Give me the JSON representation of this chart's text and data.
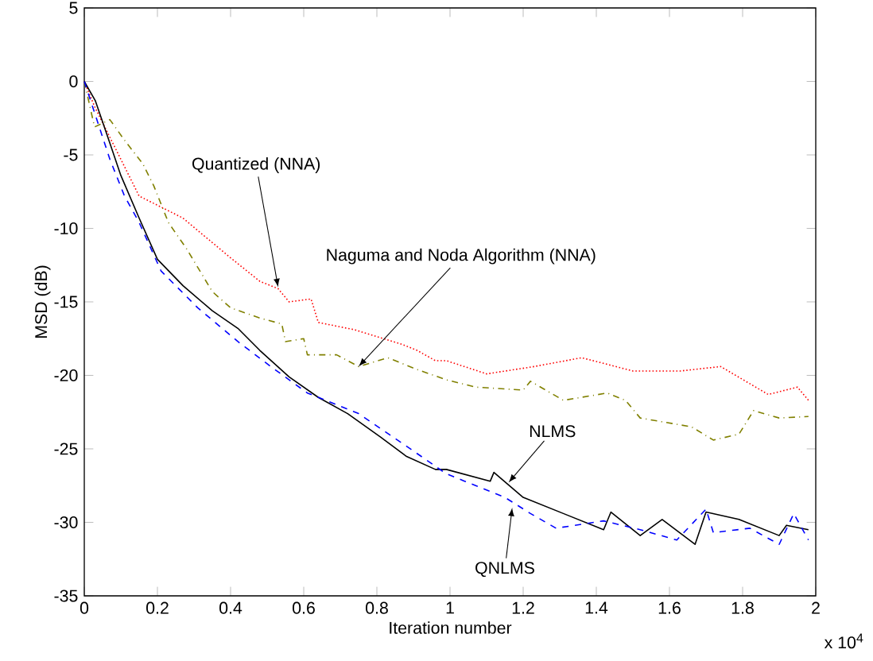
{
  "chart_data": {
    "type": "line",
    "xlabel": "Iteration number",
    "ylabel": "MSD (dB)",
    "xlim": [
      0,
      2
    ],
    "ylim": [
      -35,
      5
    ],
    "xticks": [
      0,
      0.2,
      0.4,
      0.6,
      0.8,
      1,
      1.2,
      1.4,
      1.6,
      1.8,
      2
    ],
    "yticks": [
      -35,
      -30,
      -25,
      -20,
      -15,
      -10,
      -5,
      0,
      5
    ],
    "grid": false,
    "series": [
      {
        "color": "#ff0000",
        "line_style": "dotted",
        "x": [
          0,
          0.028,
          0.15,
          0.27,
          0.39,
          0.48,
          0.53,
          0.56,
          0.62,
          0.64,
          0.74,
          0.87,
          0.91,
          0.96,
          0.99,
          1.1,
          1.23,
          1.36,
          1.5,
          1.63,
          1.74,
          1.87,
          1.95,
          1.98
        ],
        "values": [
          0,
          -1.7,
          -7.8,
          -9.3,
          -11.8,
          -13.6,
          -14.1,
          -15.0,
          -14.8,
          -16.4,
          -16.9,
          -17.9,
          -18.3,
          -19.0,
          -19.0,
          -19.9,
          -19.4,
          -18.8,
          -19.7,
          -19.7,
          -19.4,
          -21.3,
          -20.8,
          -21.7
        ]
      },
      {
        "color": "#808000",
        "line_style": "dashdot",
        "x": [
          0,
          0.028,
          0.07,
          0.11,
          0.16,
          0.19,
          0.23,
          0.28,
          0.35,
          0.4,
          0.48,
          0.54,
          0.55,
          0.6,
          0.61,
          0.69,
          0.75,
          0.83,
          0.91,
          0.99,
          1.07,
          1.2,
          1.22,
          1.31,
          1.43,
          1.48,
          1.52,
          1.66,
          1.72,
          1.79,
          1.83,
          1.9,
          1.98
        ],
        "values": [
          0,
          -3.1,
          -2.6,
          -4.0,
          -5.6,
          -7.1,
          -9.6,
          -11.4,
          -14.3,
          -15.4,
          -16.1,
          -16.5,
          -17.7,
          -17.5,
          -18.6,
          -18.6,
          -19.4,
          -18.8,
          -19.6,
          -20.3,
          -20.8,
          -21.0,
          -20.4,
          -21.7,
          -21.2,
          -21.7,
          -22.9,
          -23.5,
          -24.4,
          -24.0,
          -22.4,
          -22.9,
          -22.8
        ]
      },
      {
        "color": "#000000",
        "line_style": "solid",
        "x": [
          0,
          0.03,
          0.07,
          0.1,
          0.15,
          0.2,
          0.27,
          0.35,
          0.42,
          0.48,
          0.56,
          0.64,
          0.72,
          0.81,
          0.88,
          0.96,
          0.99,
          1.11,
          1.12,
          1.2,
          1.31,
          1.42,
          1.44,
          1.52,
          1.58,
          1.67,
          1.7,
          1.79,
          1.9,
          1.92,
          1.98
        ],
        "values": [
          0,
          -1.3,
          -4.2,
          -6.4,
          -9.3,
          -12.1,
          -13.9,
          -15.6,
          -16.8,
          -18.3,
          -20.1,
          -21.5,
          -22.6,
          -24.2,
          -25.5,
          -26.4,
          -26.4,
          -27.2,
          -26.6,
          -28.3,
          -29.4,
          -30.5,
          -29.3,
          -30.9,
          -29.8,
          -31.5,
          -29.3,
          -29.8,
          -30.9,
          -30.2,
          -30.5
        ]
      },
      {
        "color": "#0000ff",
        "line_style": "dashed",
        "x": [
          0,
          0.07,
          0.11,
          0.15,
          0.21,
          0.31,
          0.42,
          0.51,
          0.61,
          0.75,
          0.88,
          0.99,
          1.04,
          1.15,
          1.22,
          1.29,
          1.42,
          1.52,
          1.62,
          1.7,
          1.72,
          1.82,
          1.9,
          1.94,
          1.98
        ],
        "values": [
          0,
          -5.3,
          -7.8,
          -9.6,
          -12.9,
          -15.4,
          -17.7,
          -19.4,
          -21.2,
          -22.6,
          -24.8,
          -26.7,
          -27.2,
          -28.3,
          -29.4,
          -30.4,
          -29.9,
          -30.5,
          -31.2,
          -29.1,
          -30.7,
          -30.4,
          -31.5,
          -29.4,
          -31.2
        ]
      }
    ],
    "annotations": [
      {
        "text": "Quantized (NNA)",
        "x": 0.53,
        "y": -14
      },
      {
        "text": "Naguma and Noda Algorithm (NNA)",
        "x": 0.75,
        "y": -19.4
      },
      {
        "text": "NLMS",
        "x": 1.16,
        "y": -27.3
      },
      {
        "text": "QNLMS",
        "x": 1.17,
        "y": -29.0
      },
      "x 10$^{4}$"
    ]
  }
}
